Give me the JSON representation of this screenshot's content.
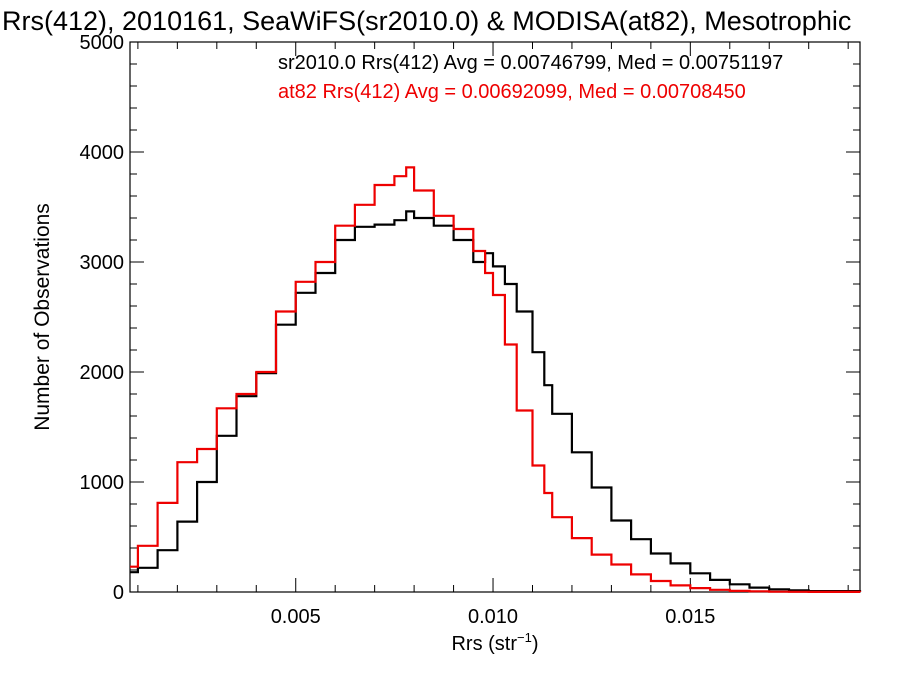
{
  "chart_data": {
    "type": "line",
    "title": "Rrs(412), 2010161, SeaWiFS(sr2010.0) & MODISA(at82), Mesotrophic",
    "xlabel": "Rrs (str",
    "xlabel_sup": "−1",
    "xlabel_end": ")",
    "ylabel": "Number of Observations",
    "xlim": [
      0.0008,
      0.0193
    ],
    "ylim": [
      0,
      5000
    ],
    "x_ticks": [
      0.005,
      0.01,
      0.015
    ],
    "x_tick_labels": [
      "0.005",
      "0.010",
      "0.015"
    ],
    "y_ticks": [
      0,
      1000,
      2000,
      3000,
      4000,
      5000
    ],
    "y_tick_labels": [
      "0",
      "1000",
      "2000",
      "3000",
      "4000",
      "5000"
    ],
    "grid": false,
    "legend_position": "top-right",
    "series": [
      {
        "name": "sr2010.0",
        "color": "#000000",
        "legend": "sr2010.0 Rrs(412) Avg = 0.00746799, Med = 0.00751197",
        "x": [
          0.0008,
          0.001,
          0.0015,
          0.002,
          0.0025,
          0.003,
          0.0035,
          0.004,
          0.0045,
          0.005,
          0.0055,
          0.006,
          0.0065,
          0.007,
          0.0075,
          0.0078,
          0.008,
          0.0085,
          0.009,
          0.0095,
          0.0098,
          0.01,
          0.0103,
          0.0106,
          0.011,
          0.0113,
          0.0115,
          0.012,
          0.0125,
          0.013,
          0.0135,
          0.014,
          0.0145,
          0.015,
          0.0155,
          0.016,
          0.0165,
          0.017,
          0.0175,
          0.018,
          0.0193
        ],
        "y": [
          180,
          220,
          380,
          640,
          1000,
          1420,
          1780,
          1990,
          2430,
          2720,
          2900,
          3200,
          3320,
          3340,
          3380,
          3460,
          3400,
          3330,
          3200,
          3000,
          3080,
          2960,
          2800,
          2550,
          2180,
          1880,
          1620,
          1270,
          950,
          650,
          480,
          350,
          260,
          170,
          110,
          70,
          40,
          25,
          15,
          8,
          2
        ]
      },
      {
        "name": "at82",
        "color": "#ee0000",
        "legend": "at82 Rrs(412) Avg = 0.00692099, Med = 0.00708450",
        "x": [
          0.0008,
          0.001,
          0.0015,
          0.002,
          0.0025,
          0.003,
          0.0035,
          0.004,
          0.0045,
          0.005,
          0.0055,
          0.006,
          0.0065,
          0.007,
          0.0075,
          0.0078,
          0.008,
          0.0085,
          0.009,
          0.0095,
          0.0098,
          0.01,
          0.0103,
          0.0106,
          0.011,
          0.0113,
          0.0115,
          0.012,
          0.0125,
          0.013,
          0.0135,
          0.014,
          0.0145,
          0.015,
          0.0155,
          0.016,
          0.0165,
          0.017,
          0.0175,
          0.018,
          0.0193
        ],
        "y": [
          230,
          420,
          810,
          1180,
          1300,
          1670,
          1800,
          2000,
          2550,
          2820,
          3000,
          3330,
          3520,
          3700,
          3780,
          3860,
          3650,
          3420,
          3300,
          3100,
          2900,
          2700,
          2250,
          1650,
          1150,
          900,
          680,
          490,
          340,
          250,
          160,
          100,
          60,
          35,
          20,
          10,
          6,
          3,
          2,
          1,
          0
        ]
      }
    ]
  }
}
